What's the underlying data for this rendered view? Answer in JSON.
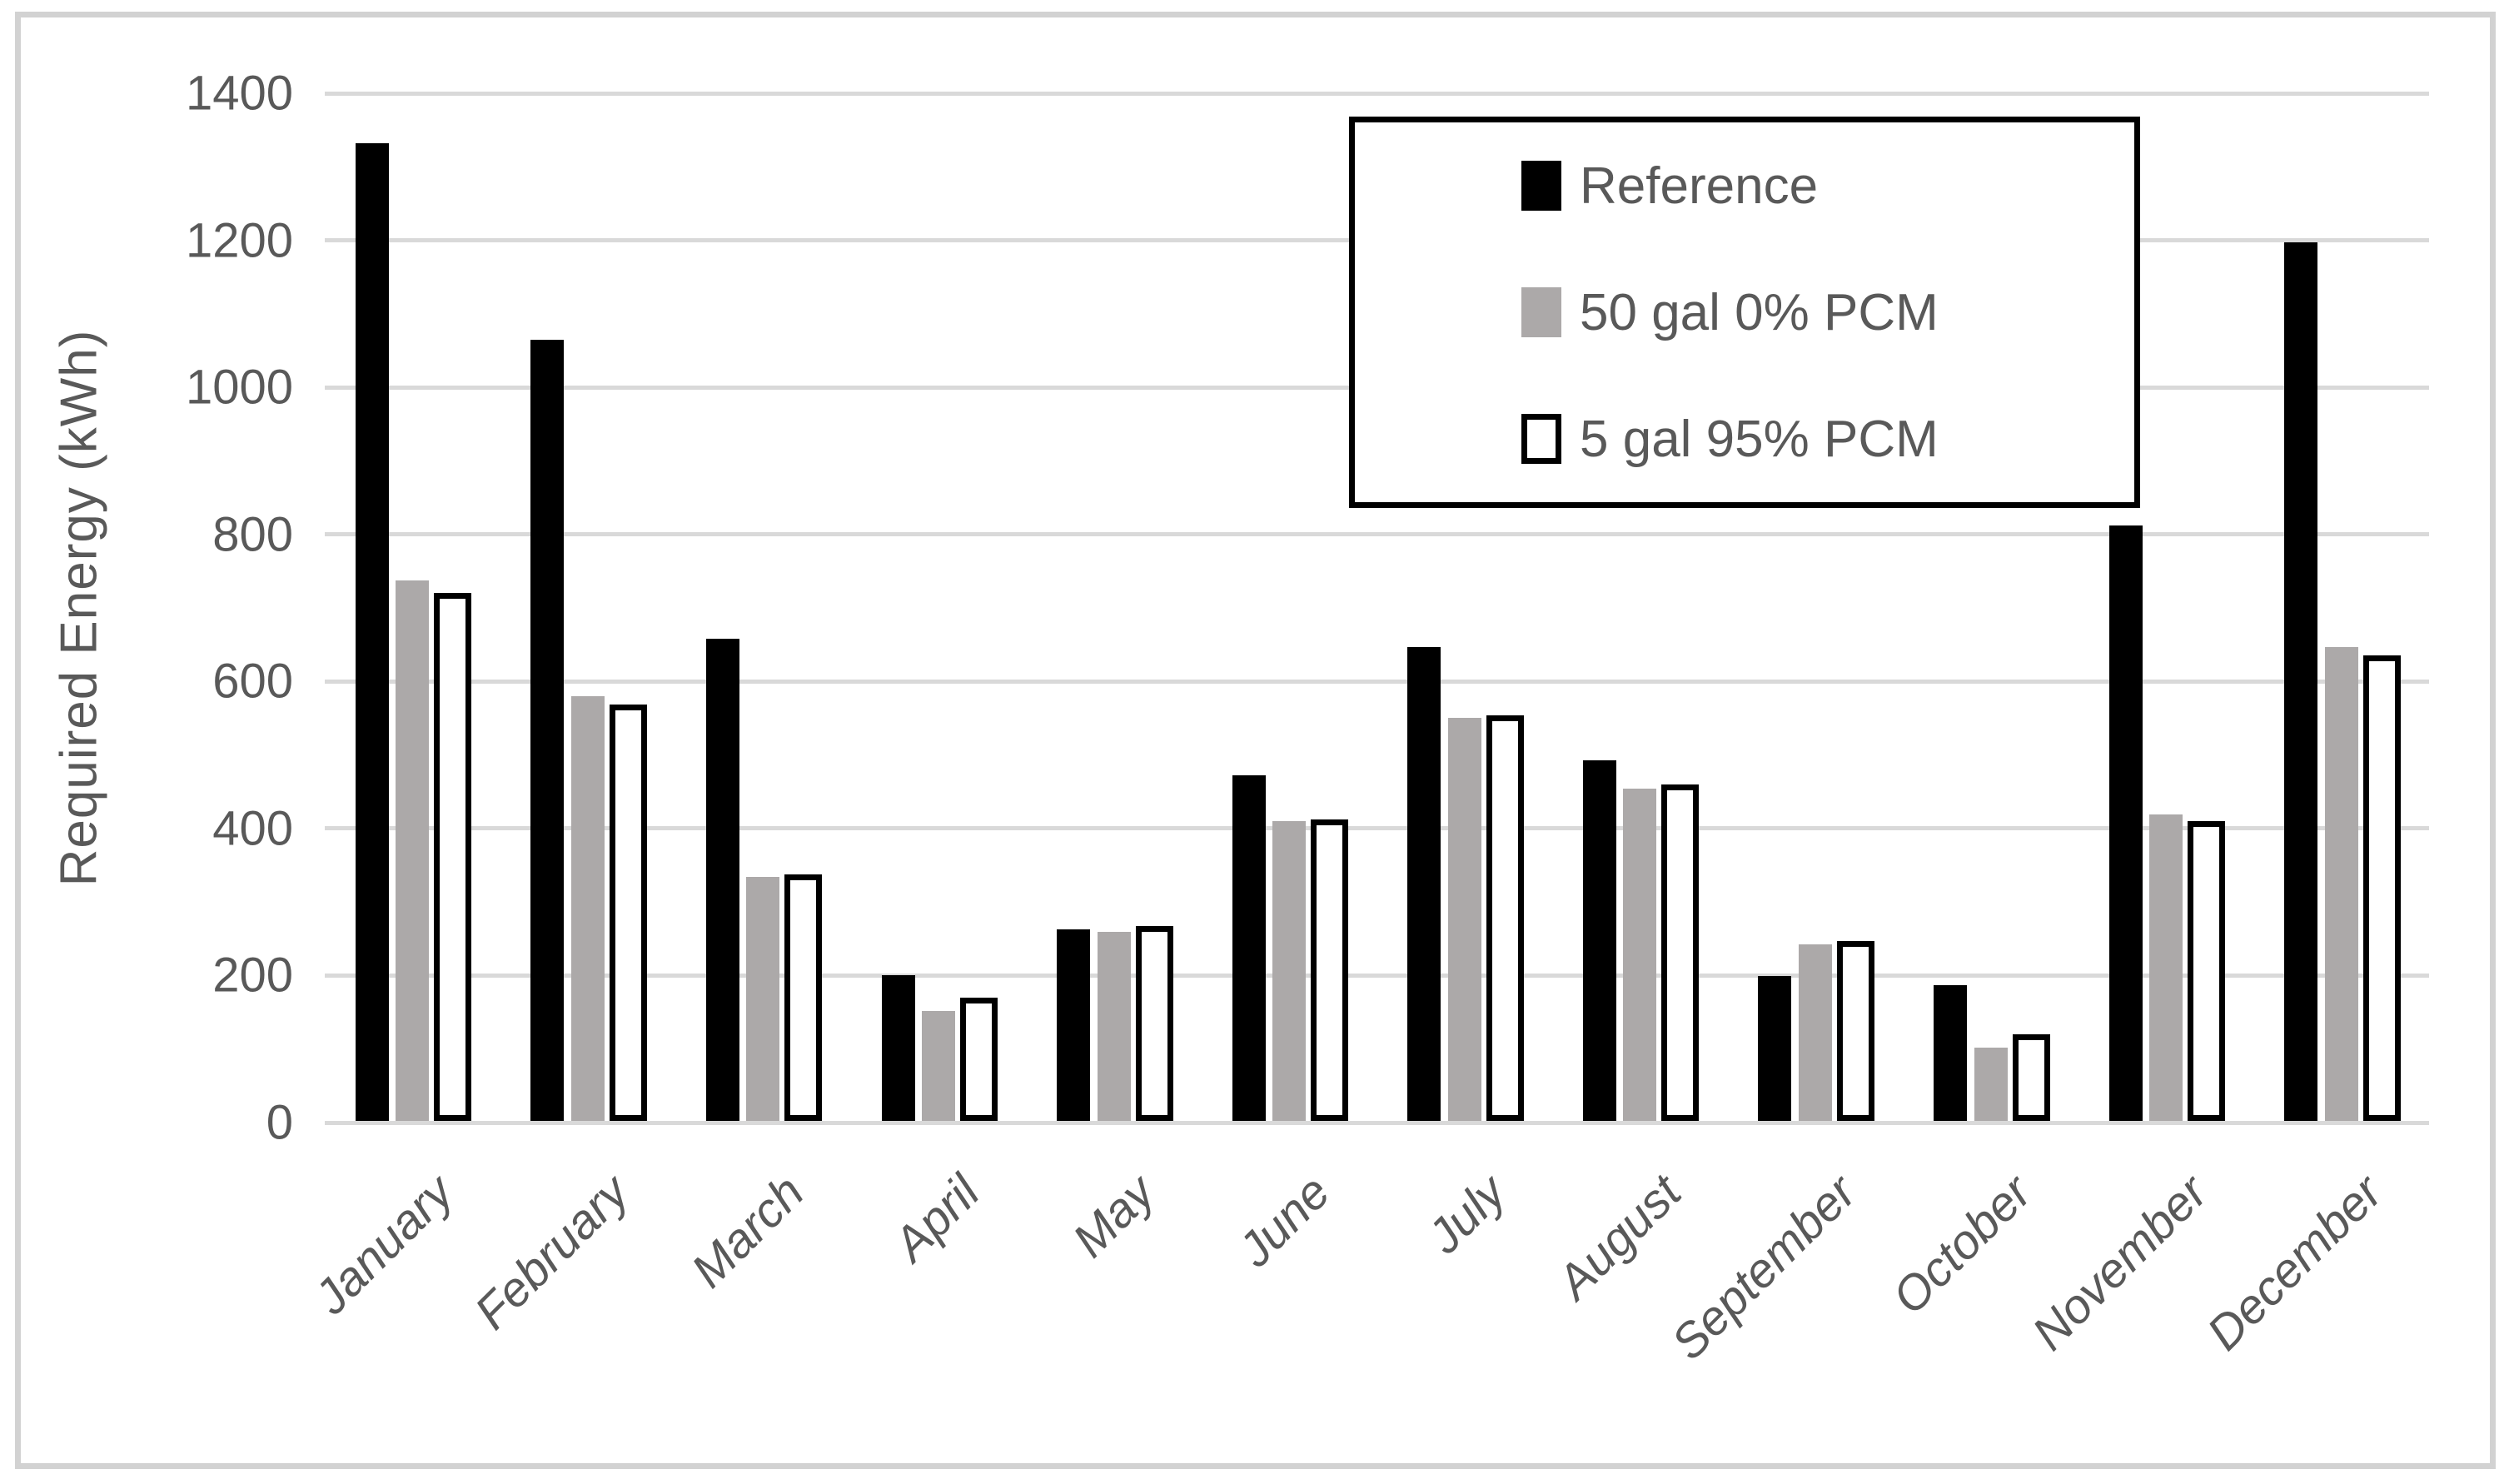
{
  "chart_data": {
    "type": "bar",
    "title": "",
    "xlabel": "",
    "ylabel": "Required Energy (kWh)",
    "ylim": [
      0,
      1400
    ],
    "yticks": [
      0,
      200,
      400,
      600,
      800,
      1000,
      1200,
      1400
    ],
    "grid": "horizontal",
    "legend_position": "inside-top-right-box",
    "categories": [
      "January",
      "February",
      "March",
      "April",
      "May",
      "June",
      "July",
      "August",
      "September",
      "October",
      "November",
      "December"
    ],
    "series": [
      {
        "name": "Reference",
        "style": "solid",
        "color": "#000000",
        "values": [
          1330,
          1062,
          656,
          198,
          261,
          470,
          645,
          490,
          197,
          185,
          810,
          1195
        ]
      },
      {
        "name": "50 gal 0% PCM",
        "style": "solid",
        "color": "#aca9a9",
        "values": [
          735,
          578,
          332,
          150,
          257,
          408,
          548,
          452,
          240,
          100,
          417,
          645
        ]
      },
      {
        "name": "5 gal 95% PCM",
        "style": "outlined",
        "color": "#ffffff",
        "border_color": "#000000",
        "values": [
          718,
          566,
          335,
          168,
          265,
          410,
          552,
          458,
          245,
          118,
          408,
          633
        ]
      }
    ],
    "colors": {
      "axis_text": "#595959",
      "gridline": "#d9d9d9",
      "frame_border": "#d2d2d2",
      "legend_border": "#000000",
      "background": "#ffffff"
    }
  }
}
